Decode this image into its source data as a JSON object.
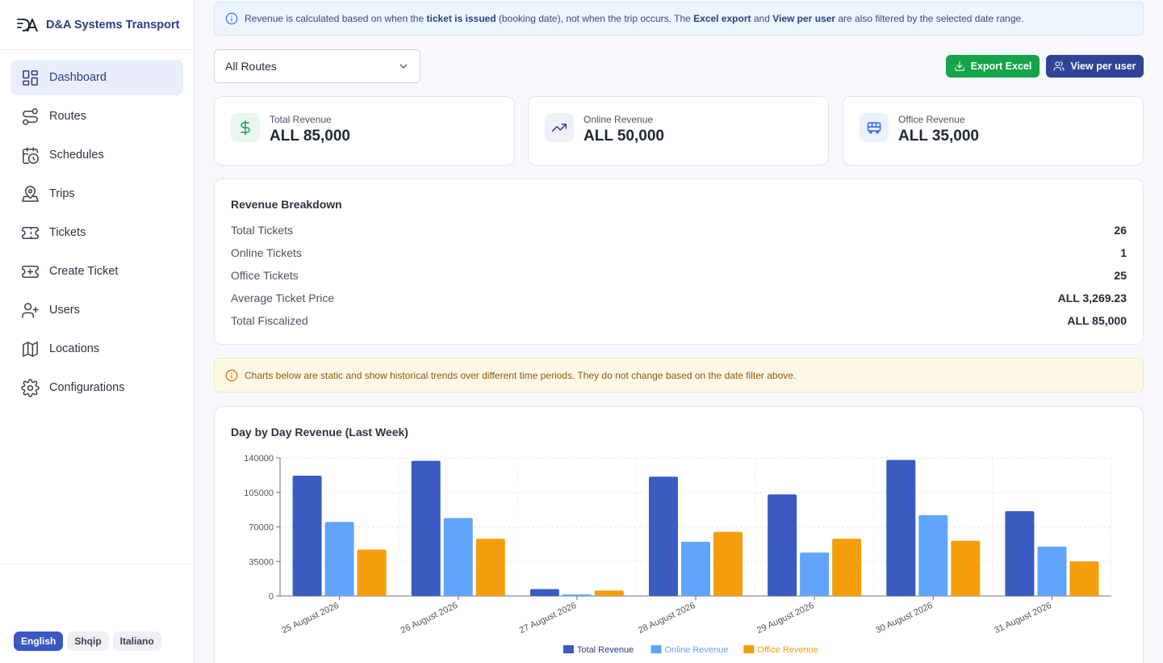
{
  "sidebar": {
    "brand": "D&A Systems Transport",
    "items": [
      {
        "label": "Dashboard",
        "icon": "dashboard-icon",
        "active": true
      },
      {
        "label": "Routes",
        "icon": "routes-icon"
      },
      {
        "label": "Schedules",
        "icon": "calendar-clock-icon"
      },
      {
        "label": "Trips",
        "icon": "map-pin-icon"
      },
      {
        "label": "Tickets",
        "icon": "ticket-icon"
      },
      {
        "label": "Create Ticket",
        "icon": "ticket-plus-icon"
      },
      {
        "label": "Users",
        "icon": "user-plus-icon"
      },
      {
        "label": "Locations",
        "icon": "map-icon"
      },
      {
        "label": "Configurations",
        "icon": "gear-icon"
      }
    ],
    "languages": [
      {
        "label": "English",
        "active": true
      },
      {
        "label": "Shqip"
      },
      {
        "label": "Italiano"
      }
    ]
  },
  "banner": {
    "t1": "Revenue is calculated based on when the ",
    "b1": "ticket is issued",
    "t2": " (booking date), not when the trip occurs. The ",
    "b2": "Excel export",
    "t3": " and ",
    "b3": "View per user",
    "t4": " are also filtered by the selected date range."
  },
  "filter": {
    "route_value": "All Routes"
  },
  "actions": {
    "export_label": "Export Excel",
    "view_user_label": "View per user"
  },
  "stats": [
    {
      "label": "Total Revenue",
      "value": "ALL 85,000",
      "icon": "dollar-icon"
    },
    {
      "label": "Online Revenue",
      "value": "ALL 50,000",
      "icon": "trending-up-icon"
    },
    {
      "label": "Office Revenue",
      "value": "ALL 35,000",
      "icon": "bus-icon"
    }
  ],
  "breakdown": {
    "title": "Revenue Breakdown",
    "rows": [
      {
        "label": "Total Tickets",
        "value": "26"
      },
      {
        "label": "Online Tickets",
        "value": "1"
      },
      {
        "label": "Office Tickets",
        "value": "25"
      },
      {
        "label": "Average Ticket Price",
        "value": "ALL 3,269.23"
      },
      {
        "label": "Total Fiscalized",
        "value": "ALL 85,000"
      }
    ]
  },
  "warning": {
    "text": "Charts below are static and show historical trends over different time periods. They do not change based on the date filter above."
  },
  "chart_data": {
    "type": "bar",
    "title": "Day by Day Revenue (Last Week)",
    "categories": [
      "25 August 2026",
      "26 August 2026",
      "27 August 2026",
      "28 August 2026",
      "29 August 2026",
      "30 August 2026",
      "31 August 2026"
    ],
    "series": [
      {
        "name": "Total Revenue",
        "color": "#3b5bc0",
        "values": [
          122000,
          137000,
          7000,
          121000,
          103000,
          138000,
          86000
        ]
      },
      {
        "name": "Online Revenue",
        "color": "#60a5fa",
        "values": [
          75000,
          79000,
          1500,
          55000,
          44000,
          82000,
          50000
        ]
      },
      {
        "name": "Office Revenue",
        "color": "#f59e0b",
        "values": [
          47000,
          58000,
          5500,
          65000,
          58000,
          56000,
          35000
        ]
      }
    ],
    "yticks": [
      "0",
      "35000",
      "70000",
      "105000",
      "140000"
    ],
    "ylim": [
      0,
      140000
    ],
    "grid": true,
    "legend": "bottom"
  }
}
